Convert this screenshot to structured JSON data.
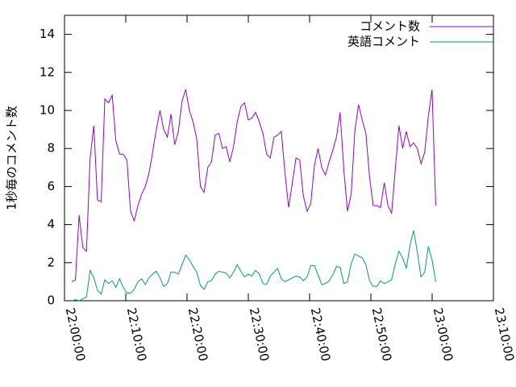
{
  "chart_data": {
    "type": "line",
    "ylabel": "1秒毎のコメント数",
    "x": [
      "22:01:11",
      "22:01:47",
      "22:02:23",
      "22:02:59",
      "22:03:35",
      "22:04:11",
      "22:04:47",
      "22:05:23",
      "22:05:59",
      "22:06:35",
      "22:07:11",
      "22:07:47",
      "22:08:23",
      "22:08:59",
      "22:09:35",
      "22:10:11",
      "22:10:47",
      "22:11:23",
      "22:11:59",
      "22:12:35",
      "22:13:11",
      "22:13:47",
      "22:14:23",
      "22:14:59",
      "22:15:35",
      "22:16:11",
      "22:16:47",
      "22:17:23",
      "22:17:59",
      "22:18:35",
      "22:19:11",
      "22:19:47",
      "22:20:23",
      "22:20:59",
      "22:21:35",
      "22:22:11",
      "22:22:47",
      "22:23:23",
      "22:23:59",
      "22:24:35",
      "22:25:11",
      "22:25:47",
      "22:26:23",
      "22:26:59",
      "22:27:35",
      "22:28:11",
      "22:28:47",
      "22:29:23",
      "22:29:59",
      "22:30:35",
      "22:31:11",
      "22:31:47",
      "22:32:23",
      "22:32:59",
      "22:33:35",
      "22:34:11",
      "22:34:47",
      "22:35:23",
      "22:35:59",
      "22:36:35",
      "22:37:11",
      "22:37:47",
      "22:38:23",
      "22:38:59",
      "22:39:35",
      "22:40:11",
      "22:40:47",
      "22:41:23",
      "22:41:59",
      "22:42:35",
      "22:43:11",
      "22:43:47",
      "22:44:23",
      "22:44:59",
      "22:45:35",
      "22:46:11",
      "22:46:47",
      "22:47:23",
      "22:47:59",
      "22:48:35",
      "22:49:11",
      "22:49:47",
      "22:50:23",
      "22:50:59",
      "22:51:35",
      "22:52:11",
      "22:52:47",
      "22:53:23",
      "22:53:59",
      "22:54:35",
      "22:55:11",
      "22:55:47",
      "22:56:23",
      "22:56:59",
      "22:57:35",
      "22:58:11",
      "22:58:47",
      "22:59:23",
      "22:59:59",
      "23:00:35"
    ],
    "series": [
      {
        "name": "コメント数",
        "color": "#9400d3",
        "values": [
          1.0,
          1.1,
          4.5,
          2.8,
          2.6,
          7.5,
          9.2,
          5.3,
          5.2,
          10.6,
          10.4,
          10.8,
          8.4,
          7.7,
          7.7,
          7.4,
          4.7,
          4.2,
          5.0,
          5.6,
          6.0,
          6.7,
          7.8,
          9.0,
          10.0,
          9.0,
          8.6,
          9.8,
          8.2,
          8.9,
          10.5,
          11.1,
          10.0,
          9.4,
          8.5,
          6.0,
          5.7,
          7.0,
          7.3,
          8.7,
          8.8,
          8.0,
          8.1,
          7.3,
          8.1,
          9.4,
          10.2,
          10.4,
          9.5,
          9.6,
          9.9,
          9.4,
          8.8,
          7.7,
          7.5,
          8.6,
          8.7,
          8.9,
          6.7,
          4.9,
          6.2,
          7.5,
          7.4,
          5.5,
          4.7,
          5.1,
          7.1,
          8.0,
          7.0,
          6.6,
          7.3,
          7.9,
          8.6,
          9.9,
          6.9,
          4.7,
          5.6,
          8.9,
          10.3,
          9.5,
          8.8,
          6.5,
          5.0,
          5.0,
          4.9,
          6.2,
          5.0,
          4.6,
          6.9,
          9.2,
          8.0,
          8.9,
          8.1,
          8.3,
          8.0,
          7.2,
          7.8,
          9.7,
          11.1,
          5.0
        ]
      },
      {
        "name": "英語コメント",
        "color": "#009e73",
        "values": [
          0,
          0.05,
          0,
          0.1,
          0.2,
          1.6,
          1.2,
          0.55,
          0.35,
          1.1,
          0.9,
          1.05,
          0.7,
          1.15,
          0.7,
          0.4,
          0.4,
          0.6,
          1.0,
          1.15,
          0.85,
          1.2,
          1.4,
          1.55,
          1.2,
          0.75,
          0.9,
          1.5,
          1.5,
          1.4,
          1.9,
          2.4,
          2.15,
          1.8,
          1.5,
          0.8,
          0.6,
          1.0,
          1.05,
          1.4,
          1.55,
          1.5,
          1.45,
          1.2,
          1.5,
          1.9,
          1.55,
          1.25,
          1.4,
          1.3,
          1.6,
          1.4,
          0.9,
          0.85,
          1.3,
          1.5,
          1.7,
          1.15,
          1.0,
          1.1,
          1.2,
          1.3,
          1.25,
          1.05,
          1.25,
          1.85,
          1.85,
          1.35,
          0.85,
          0.9,
          1.05,
          1.35,
          1.8,
          1.75,
          0.9,
          1.0,
          1.95,
          2.45,
          2.35,
          2.25,
          1.9,
          1.05,
          0.75,
          0.75,
          1.05,
          0.9,
          1.0,
          1.1,
          1.95,
          2.6,
          2.25,
          1.7,
          2.9,
          3.7,
          2.55,
          1.25,
          1.5,
          2.85,
          2.15,
          1.0
        ]
      }
    ],
    "xlim": [
      "22:00:00",
      "23:10:00"
    ],
    "xticks": [
      "22:00:00",
      "22:10:00",
      "22:20:00",
      "22:30:00",
      "22:40:00",
      "22:50:00",
      "23:00:00",
      "23:10:00"
    ],
    "ylim": [
      0,
      15
    ],
    "yticks": [
      0,
      2,
      4,
      6,
      8,
      10,
      12,
      14
    ],
    "legend": "top-right"
  }
}
